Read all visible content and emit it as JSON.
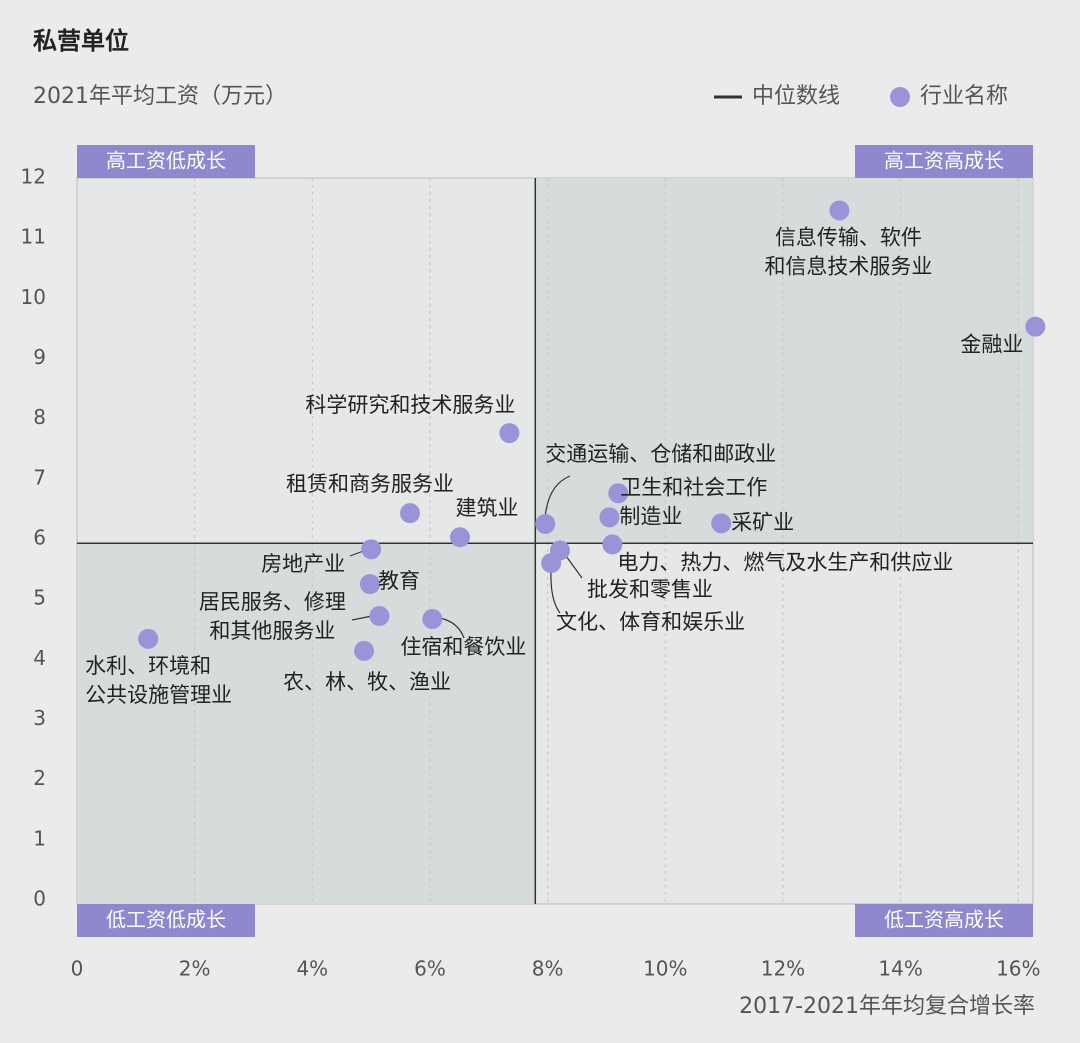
{
  "chart_data": {
    "type": "scatter",
    "title": "私营单位",
    "y_label": "2021年平均工资（万元）",
    "x_label": "2017-2021年年均复合增长率",
    "xlim": [
      0,
      16.25
    ],
    "ylim": [
      0,
      12
    ],
    "xticks": [
      0,
      {
        "value": 2,
        "label": "2%"
      },
      {
        "value": 4,
        "label": "4%"
      },
      {
        "value": 6,
        "label": "6%"
      },
      {
        "value": 8,
        "label": "8%"
      },
      {
        "value": 10,
        "label": "10%"
      },
      {
        "value": 12,
        "label": "12%"
      },
      {
        "value": 14,
        "label": "14%"
      },
      {
        "value": 16,
        "label": "16%"
      }
    ],
    "yticks": [
      0,
      1,
      2,
      3,
      4,
      5,
      6,
      7,
      8,
      9,
      10,
      11,
      12
    ],
    "grid": true,
    "legend_position": "top-right",
    "median": {
      "name": "中位数线",
      "x": 7.79,
      "y": 5.93,
      "color": "#333333"
    },
    "quadrant_labels": [
      "高工资低成长",
      "高工资高成长",
      "低工资低成长",
      "低工资高成长"
    ],
    "series": [
      {
        "name": "行业名称",
        "color": "#9b93d8",
        "x": [
          12.96,
          16.29,
          7.35,
          5.66,
          6.51,
          7.96,
          9.2,
          9.05,
          10.95,
          9.1,
          8.21,
          8.06,
          5.0,
          4.98,
          5.14,
          6.04,
          4.88,
          1.21
        ],
        "values": [
          11.46,
          9.53,
          7.76,
          6.43,
          6.03,
          6.25,
          6.76,
          6.36,
          6.26,
          5.91,
          5.81,
          5.6,
          5.83,
          5.25,
          4.72,
          4.67,
          4.14,
          4.34
        ],
        "labels": [
          [
            "信息传输、软件",
            "和信息技术服务业"
          ],
          [
            "金融业"
          ],
          [
            "科学研究和技术服务业"
          ],
          [
            "租赁和商务服务业"
          ],
          [
            "建筑业"
          ],
          [
            "交通运输、仓储和邮政业"
          ],
          [
            "卫生和社会工作"
          ],
          [
            "制造业"
          ],
          [
            "采矿业"
          ],
          [
            "电力、热力、燃气及水生产和供应业"
          ],
          [
            "批发和零售业"
          ],
          [
            "文化、体育和娱乐业"
          ],
          [
            "房地产业"
          ],
          [
            "教育"
          ],
          [
            "居民服务、修理",
            "和其他服务业"
          ],
          [
            "住宿和餐饮业"
          ],
          [
            "农、林、牧、渔业"
          ],
          [
            "水利、环境和",
            "公共设施管理业"
          ]
        ]
      }
    ]
  }
}
